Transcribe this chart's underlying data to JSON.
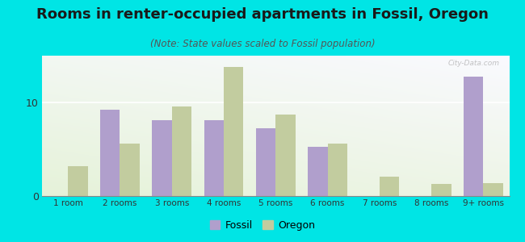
{
  "title": "Rooms in renter-occupied apartments in Fossil, Oregon",
  "subtitle": "(Note: State values scaled to Fossil population)",
  "categories": [
    "1 room",
    "2 rooms",
    "3 rooms",
    "4 rooms",
    "5 rooms",
    "6 rooms",
    "7 rooms",
    "8 rooms",
    "9+ rooms"
  ],
  "fossil_values": [
    0,
    9.2,
    8.1,
    8.1,
    7.2,
    5.3,
    0,
    0,
    12.8
  ],
  "oregon_values": [
    3.2,
    5.6,
    9.6,
    13.8,
    8.7,
    5.6,
    2.1,
    1.3,
    1.4
  ],
  "fossil_color": "#b09fcc",
  "oregon_color": "#c2cc9f",
  "background_outer": "#00e5e5",
  "ylim": [
    0,
    15
  ],
  "yticks": [
    0,
    10
  ],
  "title_fontsize": 13,
  "subtitle_fontsize": 8.5,
  "tick_fontsize": 7.5,
  "watermark": "City-Data.com"
}
